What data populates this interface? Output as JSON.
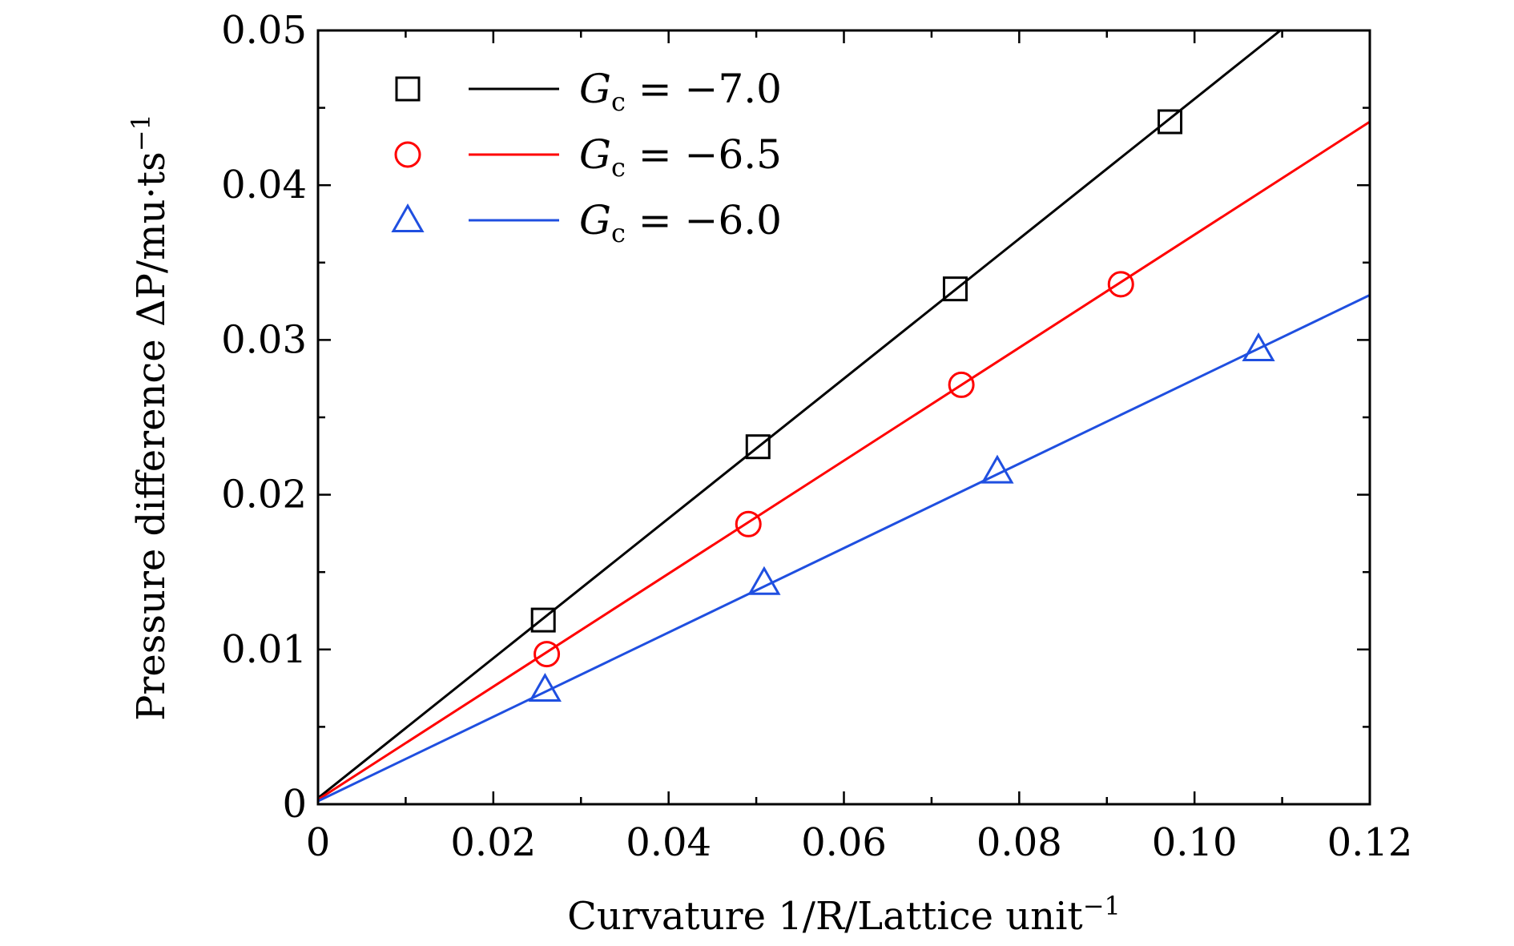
{
  "chart_data": {
    "type": "scatter",
    "xlabel": "Curvature 1/R/Lattice unit",
    "xlabel_sup": "−1",
    "ylabel": "Pressure difference ΔP/mu·ts",
    "ylabel_sup": "−1",
    "xlim": [
      0,
      0.12
    ],
    "ylim": [
      0,
      0.05
    ],
    "x_ticks": [
      "0",
      "0.02",
      "0.04",
      "0.06",
      "0.08",
      "0.10",
      "0.12"
    ],
    "y_ticks": [
      "0",
      "0.01",
      "0.02",
      "0.03",
      "0.04",
      "0.05"
    ],
    "x_tick_values": [
      0,
      0.02,
      0.04,
      0.06,
      0.08,
      0.1,
      0.12
    ],
    "y_tick_values": [
      0,
      0.01,
      0.02,
      0.03,
      0.04,
      0.05
    ],
    "grid": false,
    "legend_position": "top-left",
    "series": [
      {
        "name_main": "G",
        "name_sub": "c",
        "name_rest": " = −7.0",
        "marker": "square",
        "color": "#000000",
        "x": [
          0.0257,
          0.0502,
          0.0727,
          0.0972
        ],
        "y": [
          0.0119,
          0.0231,
          0.0333,
          0.0441
        ],
        "fit": {
          "x": [
            0,
            0.1098
          ],
          "y": [
            0.0004,
            0.05
          ]
        }
      },
      {
        "name_main": "G",
        "name_sub": "c",
        "name_rest": " = −6.5",
        "marker": "circle",
        "color": "#ff0000",
        "x": [
          0.0261,
          0.0491,
          0.0734,
          0.0916
        ],
        "y": [
          0.0097,
          0.0181,
          0.0271,
          0.0336
        ],
        "fit": {
          "x": [
            0,
            0.12
          ],
          "y": [
            0.0003,
            0.0441
          ]
        }
      },
      {
        "name_main": "G",
        "name_sub": "c",
        "name_rest": " = −6.0",
        "marker": "triangle",
        "color": "#1f4fe0",
        "x": [
          0.0259,
          0.0509,
          0.0775,
          0.1073
        ],
        "y": [
          0.0074,
          0.0143,
          0.0215,
          0.0294
        ],
        "fit": {
          "x": [
            0,
            0.12
          ],
          "y": [
            0.0002,
            0.0329
          ]
        }
      }
    ]
  }
}
